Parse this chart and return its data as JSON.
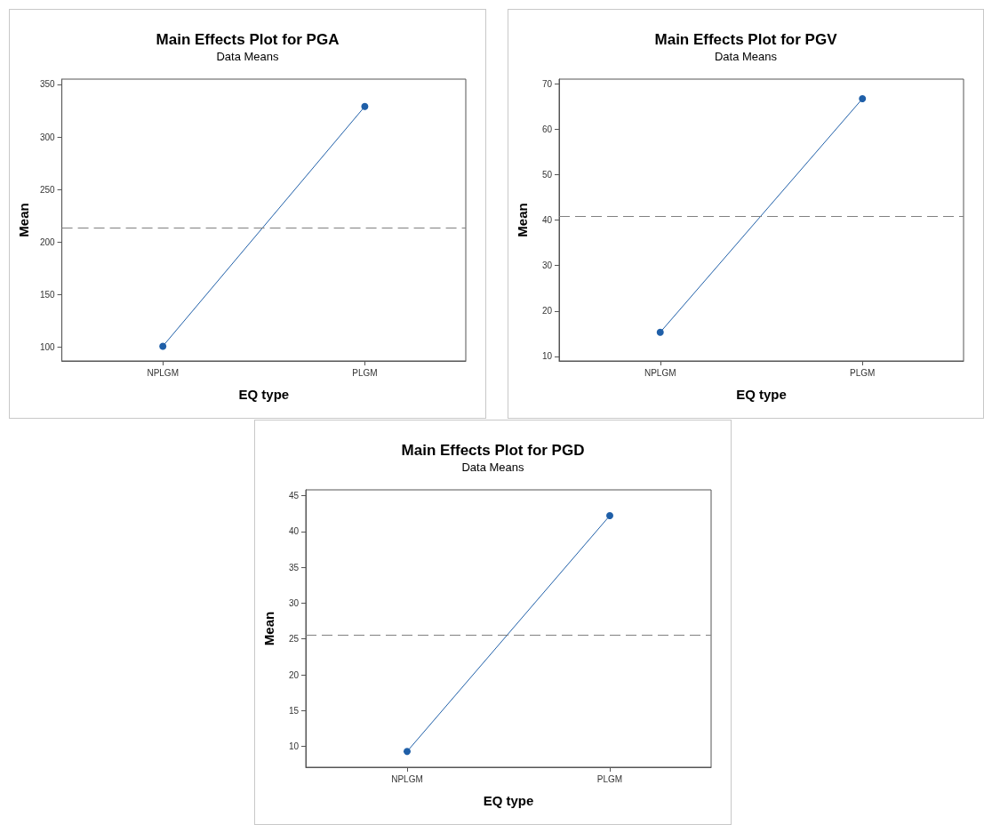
{
  "chart_data": [
    {
      "type": "line",
      "title": "Main Effects Plot for PGA",
      "subtitle": "Data Means",
      "xlabel": "EQ type",
      "ylabel": "Mean",
      "categories": [
        "NPLGM",
        "PLGM"
      ],
      "series": [
        {
          "color": "#1f5fa8",
          "values": [
            101,
            329
          ]
        }
      ],
      "ylim": [
        87,
        355
      ],
      "yticks": [
        100,
        150,
        200,
        250,
        300,
        350
      ],
      "marker": "circle",
      "line_style": "solid",
      "ref_lines": [
        {
          "axis": "y",
          "value": 214,
          "color": "#808080",
          "line_style": "dashed"
        }
      ]
    },
    {
      "type": "line",
      "title": "Main Effects Plot for PGV",
      "subtitle": "Data Means",
      "xlabel": "EQ type",
      "ylabel": "Mean",
      "categories": [
        "NPLGM",
        "PLGM"
      ],
      "series": [
        {
          "color": "#1f5fa8",
          "values": [
            15.3,
            66.7
          ]
        }
      ],
      "ylim": [
        9,
        71
      ],
      "yticks": [
        10,
        20,
        30,
        40,
        50,
        60,
        70
      ],
      "marker": "circle",
      "line_style": "solid",
      "ref_lines": [
        {
          "axis": "y",
          "value": 40.8,
          "color": "#808080",
          "line_style": "dashed"
        }
      ]
    },
    {
      "type": "line",
      "title": "Main Effects Plot for PGD",
      "subtitle": "Data Means",
      "xlabel": "EQ type",
      "ylabel": "Mean",
      "categories": [
        "NPLGM",
        "PLGM"
      ],
      "series": [
        {
          "color": "#1f5fa8",
          "values": [
            9.3,
            42.2
          ]
        }
      ],
      "ylim": [
        7.1,
        45.8
      ],
      "yticks": [
        10,
        15,
        20,
        25,
        30,
        35,
        40,
        45
      ],
      "marker": "circle",
      "line_style": "solid",
      "ref_lines": [
        {
          "axis": "y",
          "value": 25.6,
          "color": "#808080",
          "line_style": "dashed"
        }
      ]
    }
  ]
}
